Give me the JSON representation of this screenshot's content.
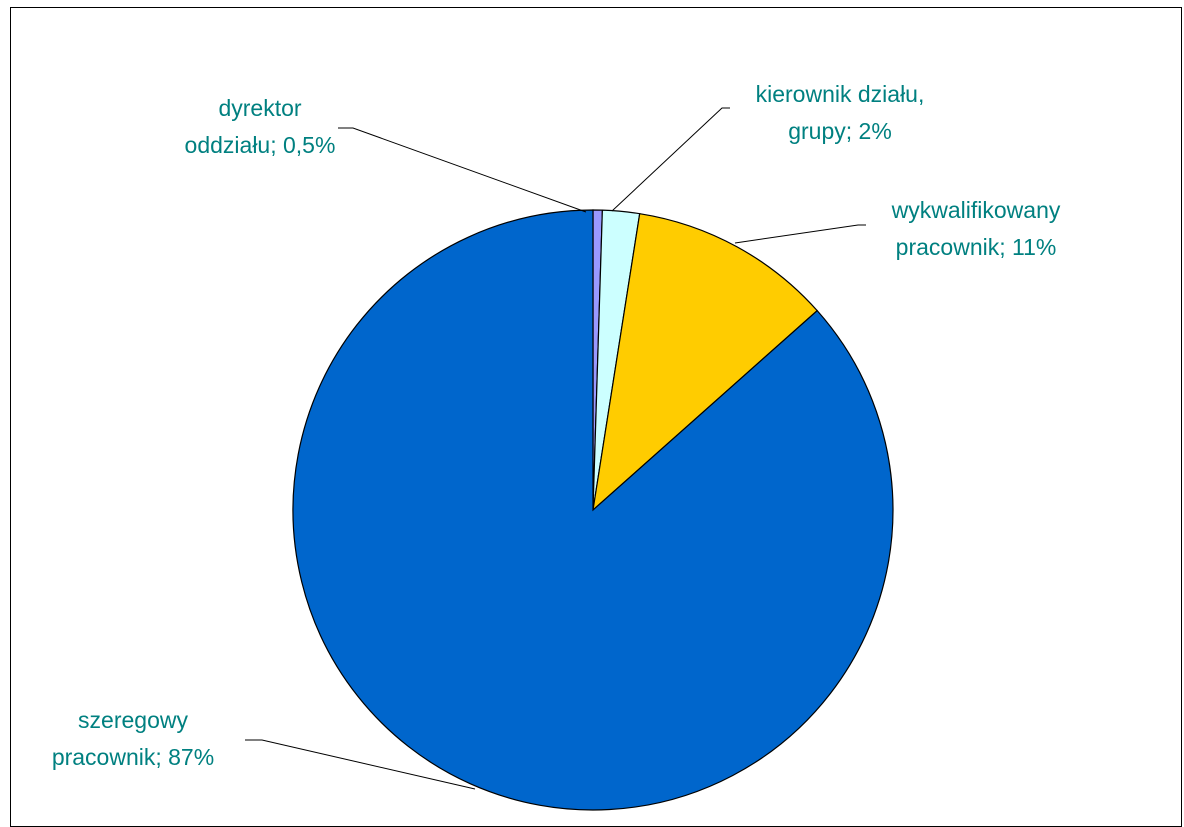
{
  "chart_data": {
    "type": "pie",
    "title": "",
    "start_angle_deg": 0,
    "direction": "clockwise",
    "slices": [
      {
        "name": "dyrektor oddziału",
        "value": 0.5,
        "label_lines": [
          "dyrektor",
          "oddziału; 0,5%"
        ],
        "color": "#9999ff",
        "label_color": "#008080"
      },
      {
        "name": "kierownik działu, grupy",
        "value": 2,
        "label_lines": [
          "kierownik działu,",
          "grupy; 2%"
        ],
        "color": "#ccffff",
        "label_color": "#008080"
      },
      {
        "name": "wykwalifikowany pracownik",
        "value": 11,
        "label_lines": [
          "wykwalifikowany",
          "pracownik; 11%"
        ],
        "color": "#ffcc00",
        "label_color": "#008080"
      },
      {
        "name": "szeregowy pracownik",
        "value": 87,
        "label_lines": [
          "szeregowy",
          "pracownik; 87%"
        ],
        "color": "#0066cc",
        "label_color": "#008080"
      }
    ]
  }
}
